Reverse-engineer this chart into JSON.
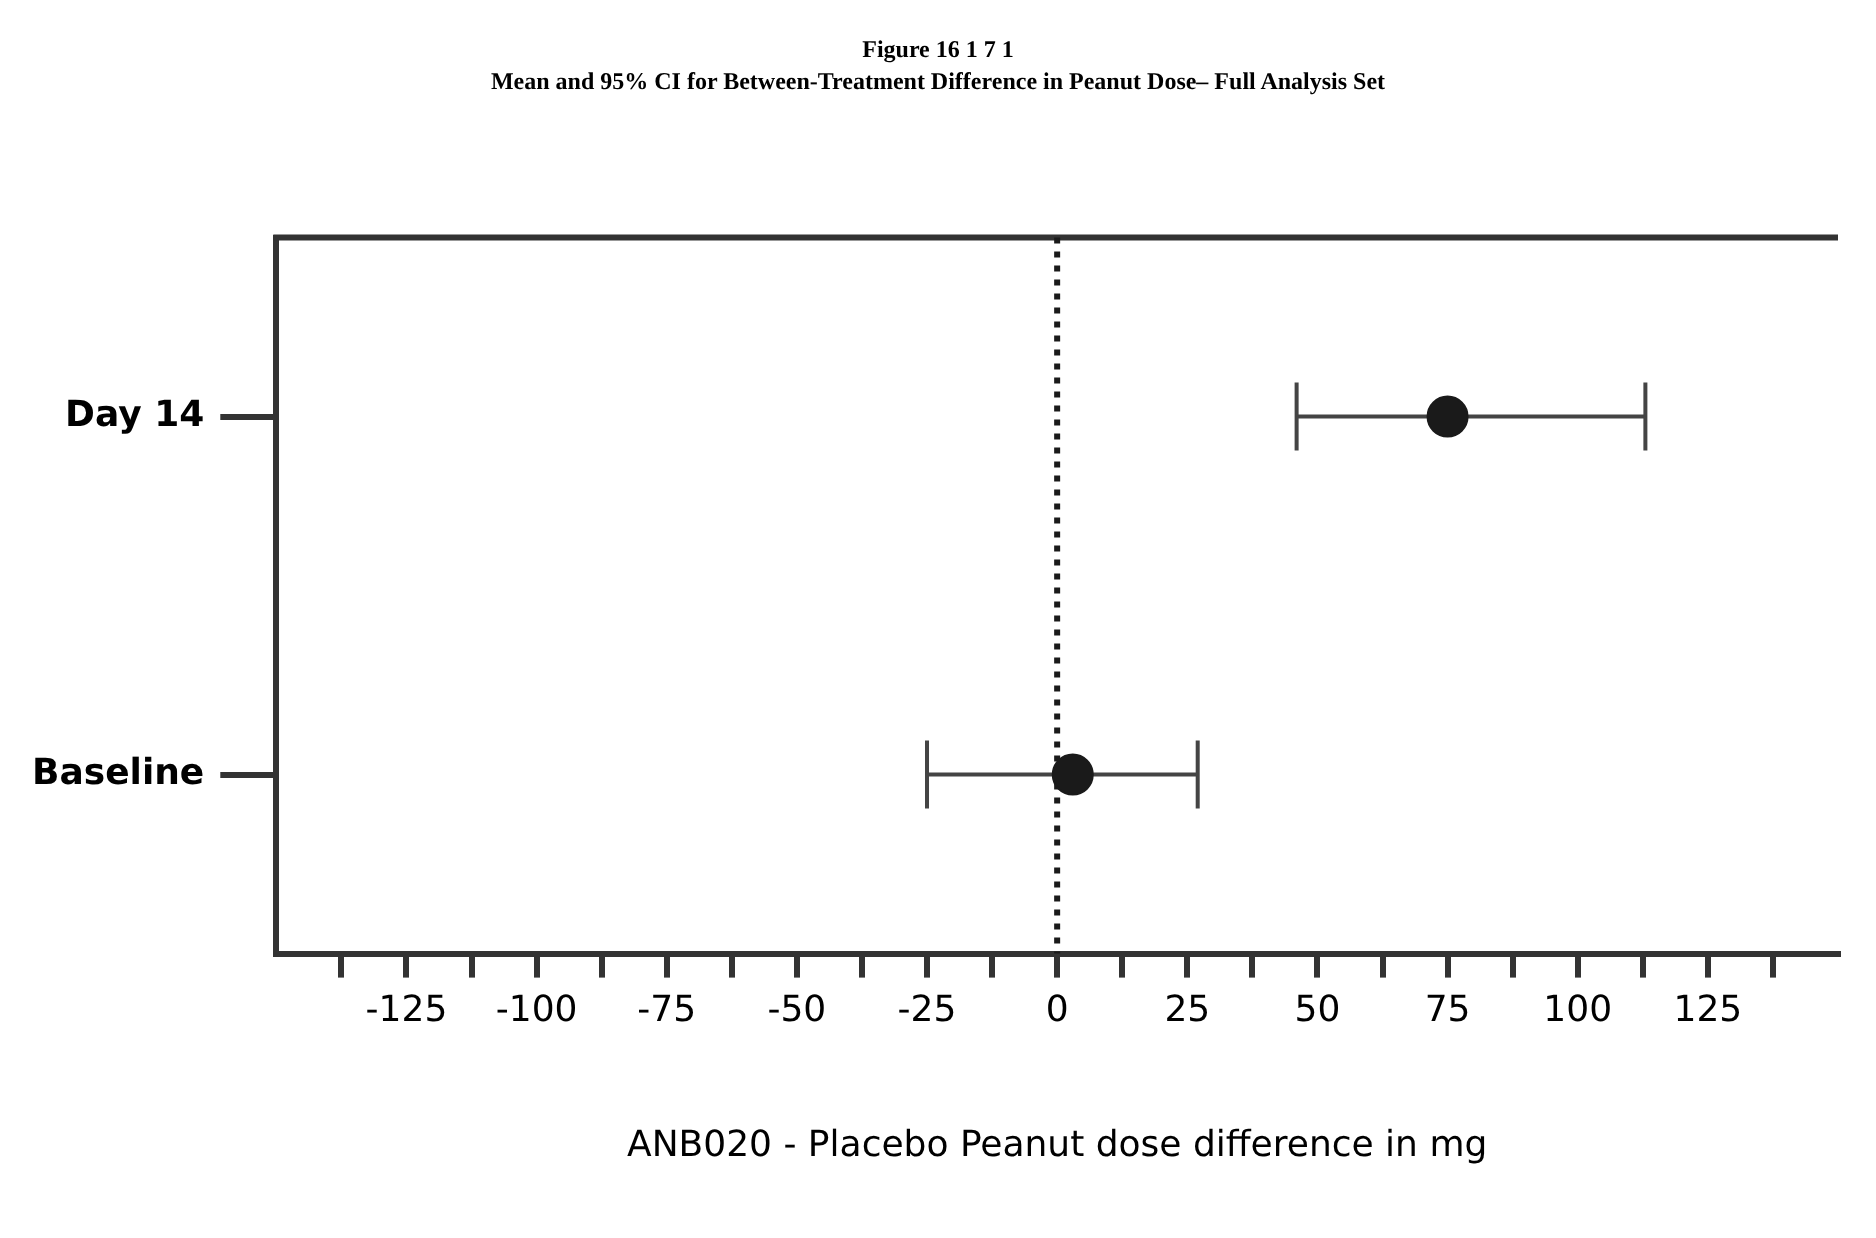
{
  "chart_data": {
    "type": "scatter",
    "orientation": "horizontal",
    "title": "Figure 16 1 7 1",
    "subtitle": "Mean and 95% CI for Between-Treatment Difference in Peanut Dose– Full Analysis Set",
    "xlabel": "ANB020 - Placebo Peanut dose difference in mg",
    "categories": [
      "Day 14",
      "Baseline"
    ],
    "values": [
      75,
      3
    ],
    "errors": [
      [
        46,
        113
      ],
      [
        -25,
        27
      ]
    ],
    "color": "#1a1a1a",
    "marker": "circle",
    "grid": false,
    "legend": false,
    "xlim": [
      -150,
      150
    ],
    "xticks": [
      {
        "value": -137.5,
        "label": null
      },
      -125,
      {
        "value": -112.5,
        "label": null
      },
      -100,
      {
        "value": -87.5,
        "label": null
      },
      -75,
      {
        "value": -62.5,
        "label": null
      },
      -50,
      {
        "value": -37.5,
        "label": null
      },
      -25,
      {
        "value": -12.5,
        "label": null
      },
      0,
      {
        "value": 12.5,
        "label": null
      },
      25,
      {
        "value": 37.5,
        "label": null
      },
      50,
      {
        "value": 62.5,
        "label": null
      },
      75,
      {
        "value": 87.5,
        "label": null
      },
      100,
      {
        "value": 112.5,
        "label": null
      },
      125,
      {
        "value": 137.5,
        "label": null
      }
    ],
    "ref_lines": [
      {
        "axis": "x",
        "value": 0,
        "label": null,
        "line_style": "dotted",
        "color": "#1a1a1a"
      }
    ]
  }
}
